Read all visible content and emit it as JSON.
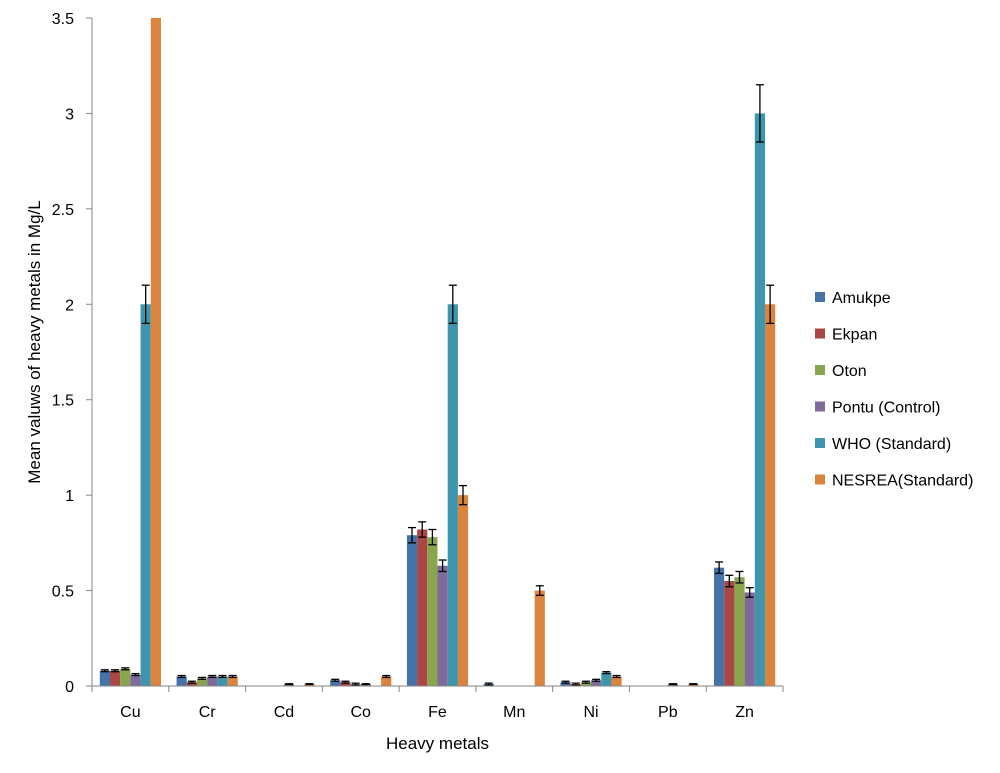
{
  "chart_data": {
    "type": "bar",
    "title": "",
    "xlabel": "Heavy metals",
    "ylabel": "Mean valuws of heavy metals in Mg/L",
    "ylim": [
      0,
      3.5
    ],
    "yticks": [
      "0",
      "0.5",
      "1",
      "1.5",
      "2",
      "2.5",
      "3",
      "3.5"
    ],
    "categories": [
      "Cu",
      "Cr",
      "Cd",
      "Co",
      "Fe",
      "Mn",
      "Ni",
      "Pb",
      "Zn"
    ],
    "grid": false,
    "legend_position": "right",
    "series": [
      {
        "name": "Amukpe",
        "color": "#4572A7",
        "values": [
          0.08,
          0.05,
          0,
          0.03,
          0.79,
          0.01,
          0.02,
          0,
          0.62
        ],
        "errors": [
          0.005,
          0.005,
          0,
          0.005,
          0.04,
          0.005,
          0.005,
          0,
          0.03
        ]
      },
      {
        "name": "Ekpan",
        "color": "#AA4643",
        "values": [
          0.08,
          0.02,
          0,
          0.02,
          0.82,
          0,
          0.01,
          0,
          0.55
        ],
        "errors": [
          0.005,
          0.005,
          0,
          0.005,
          0.04,
          0,
          0.005,
          0,
          0.03
        ]
      },
      {
        "name": "Oton",
        "color": "#89A54E",
        "values": [
          0.09,
          0.04,
          0,
          0.01,
          0.78,
          0,
          0.02,
          0,
          0.57
        ],
        "errors": [
          0.005,
          0.005,
          0,
          0.005,
          0.04,
          0,
          0.005,
          0,
          0.03
        ]
      },
      {
        "name": "Pontu (Control)",
        "color": "#80699B",
        "values": [
          0.06,
          0.05,
          0.01,
          0.01,
          0.63,
          0,
          0.03,
          0.01,
          0.49
        ],
        "errors": [
          0.005,
          0.005,
          0.002,
          0.002,
          0.03,
          0,
          0.005,
          0.002,
          0.025
        ]
      },
      {
        "name": "WHO (Standard)",
        "color": "#3D96AE",
        "values": [
          2,
          0.05,
          0,
          0,
          2,
          0,
          0.07,
          0,
          3
        ],
        "errors": [
          0.1,
          0.005,
          0,
          0,
          0.1,
          0,
          0.005,
          0,
          0.15
        ]
      },
      {
        "name": "NESREA(Standard)",
        "color": "#DB843D",
        "values": [
          3.5,
          0.05,
          0.01,
          0.05,
          1,
          0.5,
          0.05,
          0.01,
          2
        ],
        "errors": [
          0,
          0.005,
          0.002,
          0.005,
          0.05,
          0.025,
          0.005,
          0.002,
          0.1
        ]
      }
    ]
  }
}
